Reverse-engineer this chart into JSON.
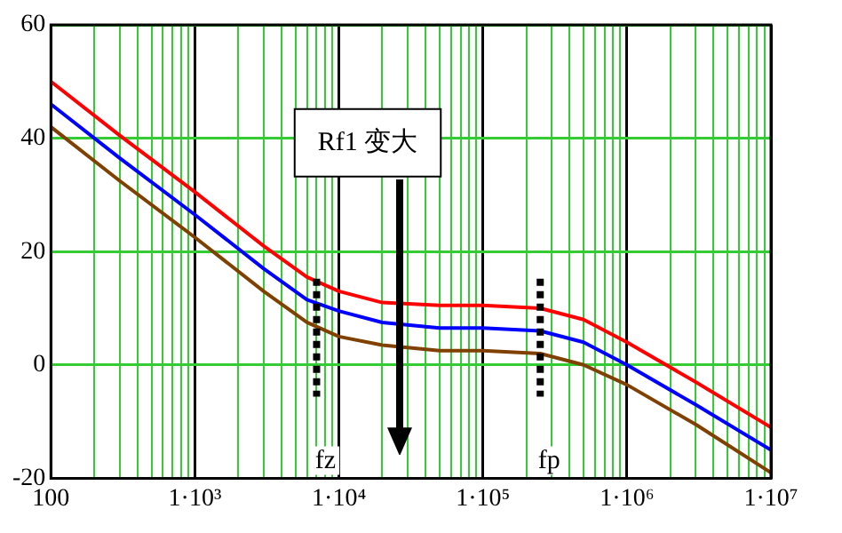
{
  "chart_data": {
    "type": "line",
    "x": [
      100,
      300,
      1000,
      3000,
      6000,
      10000,
      20000,
      50000,
      100000,
      250000,
      500000,
      1000000,
      3000000,
      10000000
    ],
    "series": [
      {
        "color": "#ff0000",
        "values": [
          50,
          40.5,
          30.5,
          21,
          15.5,
          13,
          11,
          10.5,
          10.5,
          10,
          8,
          4,
          -3,
          -11
        ]
      },
      {
        "color": "#0000ff",
        "values": [
          46,
          36.5,
          26.5,
          17,
          11.5,
          9.5,
          7.5,
          6.5,
          6.5,
          6,
          4,
          0,
          -7,
          -15
        ]
      },
      {
        "color": "#804000",
        "values": [
          42,
          32.5,
          22.5,
          13,
          7.5,
          5,
          3.5,
          2.5,
          2.5,
          2,
          0,
          -3.5,
          -10.5,
          -19
        ]
      }
    ],
    "log": "x",
    "xlim": [
      100,
      10000000
    ],
    "xticks": [
      {
        "value": 100,
        "label": "100"
      },
      {
        "value": 200,
        "label": null
      },
      {
        "value": 300,
        "label": null
      },
      {
        "value": 400,
        "label": null
      },
      {
        "value": 500,
        "label": null
      },
      {
        "value": 600,
        "label": null
      },
      {
        "value": 700,
        "label": null
      },
      {
        "value": 800,
        "label": null
      },
      {
        "value": 900,
        "label": null
      },
      {
        "value": 1000,
        "label": "1·10³"
      },
      {
        "value": 2000,
        "label": null
      },
      {
        "value": 3000,
        "label": null
      },
      {
        "value": 4000,
        "label": null
      },
      {
        "value": 5000,
        "label": null
      },
      {
        "value": 6000,
        "label": null
      },
      {
        "value": 7000,
        "label": null
      },
      {
        "value": 8000,
        "label": null
      },
      {
        "value": 9000,
        "label": null
      },
      {
        "value": 10000,
        "label": "1·10⁴"
      },
      {
        "value": 20000,
        "label": null
      },
      {
        "value": 30000,
        "label": null
      },
      {
        "value": 40000,
        "label": null
      },
      {
        "value": 50000,
        "label": null
      },
      {
        "value": 60000,
        "label": null
      },
      {
        "value": 70000,
        "label": null
      },
      {
        "value": 80000,
        "label": null
      },
      {
        "value": 90000,
        "label": null
      },
      {
        "value": 100000,
        "label": "1·10⁵"
      },
      {
        "value": 200000,
        "label": null
      },
      {
        "value": 300000,
        "label": null
      },
      {
        "value": 400000,
        "label": null
      },
      {
        "value": 500000,
        "label": null
      },
      {
        "value": 600000,
        "label": null
      },
      {
        "value": 700000,
        "label": null
      },
      {
        "value": 800000,
        "label": null
      },
      {
        "value": 900000,
        "label": null
      },
      {
        "value": 1000000,
        "label": "1·10⁶"
      },
      {
        "value": 2000000,
        "label": null
      },
      {
        "value": 3000000,
        "label": null
      },
      {
        "value": 4000000,
        "label": null
      },
      {
        "value": 5000000,
        "label": null
      },
      {
        "value": 6000000,
        "label": null
      },
      {
        "value": 7000000,
        "label": null
      },
      {
        "value": 8000000,
        "label": null
      },
      {
        "value": 9000000,
        "label": null
      },
      {
        "value": 10000000,
        "label": "1·10⁷"
      }
    ],
    "ylim": [
      -20,
      60
    ],
    "yticks": [
      -20,
      0,
      20,
      40,
      60
    ],
    "grid": true,
    "legend": false,
    "marker": "none",
    "line_style": "solid",
    "ref_lines": [
      {
        "axis": "x",
        "value": 7000,
        "label": "fz",
        "color": "#000000",
        "line_style": "dotted"
      },
      {
        "axis": "x",
        "value": 250000,
        "label": "fp",
        "color": "#000000",
        "line_style": "dotted"
      }
    ],
    "annotations": [
      "Rf1 变大"
    ]
  }
}
